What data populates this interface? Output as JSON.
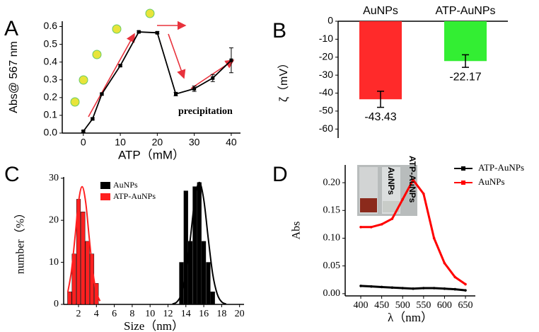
{
  "chart_data": [
    {
      "type": "line",
      "panel": "A",
      "xlabel": "ATP（mM）",
      "ylabel": "Abs@ 567 nm",
      "annotation": "precipitation",
      "marker": "square",
      "series": [
        {
          "color": "#000000",
          "x": [
            0,
            2.5,
            5,
            10,
            15,
            20,
            25,
            30,
            35,
            40
          ],
          "values": [
            0.01,
            0.08,
            0.22,
            0.38,
            0.57,
            0.565,
            0.22,
            0.25,
            0.31,
            0.41
          ],
          "errors": [
            0.005,
            0.005,
            0.005,
            0.005,
            0.005,
            0.006,
            0.01,
            0.015,
            0.02,
            0.07
          ]
        }
      ],
      "xlim": [
        -5.7,
        42.5
      ],
      "xticks": [
        0,
        10,
        20,
        30,
        40
      ],
      "ylim": [
        0,
        0.63
      ],
      "yticks": [
        {
          "value": 0,
          "label": "0.0"
        },
        0.1,
        0.2,
        0.3,
        0.4,
        0.5,
        0.6
      ]
    },
    {
      "type": "bar",
      "panel": "B",
      "ylabel": "ζ（mV）",
      "categories": [
        "AuNPs",
        "ATP-AuNPs"
      ],
      "values": [
        -43.43,
        -22.17
      ],
      "errors": [
        4.5,
        3.5
      ],
      "colors": [
        "#ff2a2a",
        "#33ee33"
      ],
      "ylim": [
        -65,
        0
      ],
      "yticks": [
        0,
        -10,
        -20,
        -30,
        -40,
        -50,
        -60
      ]
    },
    {
      "type": "distribution",
      "panel": "C",
      "xlabel": "Size（nm）",
      "ylabel": "number（%）",
      "series": [
        {
          "name": "AuNPs",
          "color": "#000000",
          "x": [
            13.5,
            14,
            14.5,
            15,
            15.5,
            16,
            16.5,
            17
          ],
          "values": [
            10,
            27,
            15,
            28,
            29,
            15,
            10,
            3
          ],
          "fit": {
            "x": [
              12.5,
              13,
              13.5,
              14,
              14.5,
              15,
              15.5,
              16,
              16.5,
              17,
              17.5,
              18,
              18.5
            ],
            "values": [
              0.1,
              0.6,
              2.5,
              7.2,
              15.7,
              24.9,
              29,
              24.9,
              15.7,
              7.2,
              2.5,
              0.6,
              0.1
            ]
          }
        },
        {
          "name": "ATP-AuNPs",
          "color": "#ff2020",
          "x": [
            1,
            1.5,
            2,
            2.5,
            3,
            3.5,
            4
          ],
          "values": [
            3,
            12,
            25,
            22,
            15,
            12,
            5
          ],
          "fit": {
            "x": [
              0.8,
              1.2,
              1.6,
              2.0,
              2.4,
              2.8,
              3.2,
              3.6,
              4.0,
              4.4
            ],
            "values": [
              2.9,
              7.8,
              15.8,
              24.3,
              28,
              24.3,
              15.8,
              7.8,
              2.9,
              0.8
            ]
          }
        }
      ],
      "xlim": [
        0.34,
        20.5
      ],
      "xticks": [
        2,
        4,
        6,
        8,
        10,
        12,
        14,
        16,
        18,
        20
      ],
      "ylim": [
        0,
        30.3
      ],
      "yticks": [
        0,
        10,
        20,
        30
      ]
    },
    {
      "type": "line",
      "panel": "D",
      "xlabel": "λ（nm）",
      "ylabel": "Abs",
      "marker": "circle",
      "inset_labels": [
        "AuNPs",
        "ATP-AuNPs"
      ],
      "series": [
        {
          "name": "ATP-AuNPs",
          "color": "#000000",
          "x": [
            400,
            425,
            450,
            475,
            500,
            525,
            550,
            575,
            600,
            625,
            650
          ],
          "values": [
            0.014,
            0.013,
            0.012,
            0.011,
            0.01,
            0.009,
            0.01,
            0.01,
            0.009,
            0.008,
            0.006
          ]
        },
        {
          "name": "AuNPs",
          "color": "#ff0000",
          "x": [
            400,
            425,
            450,
            475,
            500,
            525,
            550,
            575,
            600,
            625,
            650
          ],
          "values": [
            0.12,
            0.12,
            0.125,
            0.135,
            0.17,
            0.205,
            0.18,
            0.1,
            0.055,
            0.03,
            0.017
          ]
        }
      ],
      "xlim": [
        362.8,
        673.6
      ],
      "xticks": [
        400,
        450,
        500,
        550,
        600,
        650
      ],
      "ylim": [
        -0.004,
        0.232
      ],
      "yticks": [
        {
          "value": 0,
          "label": "0.00"
        },
        {
          "value": 0.05,
          "label": "0.05"
        },
        {
          "value": 0.1,
          "label": "0.10"
        },
        {
          "value": 0.15,
          "label": "0.15"
        },
        {
          "value": 0.2,
          "label": "0.20"
        }
      ]
    }
  ]
}
